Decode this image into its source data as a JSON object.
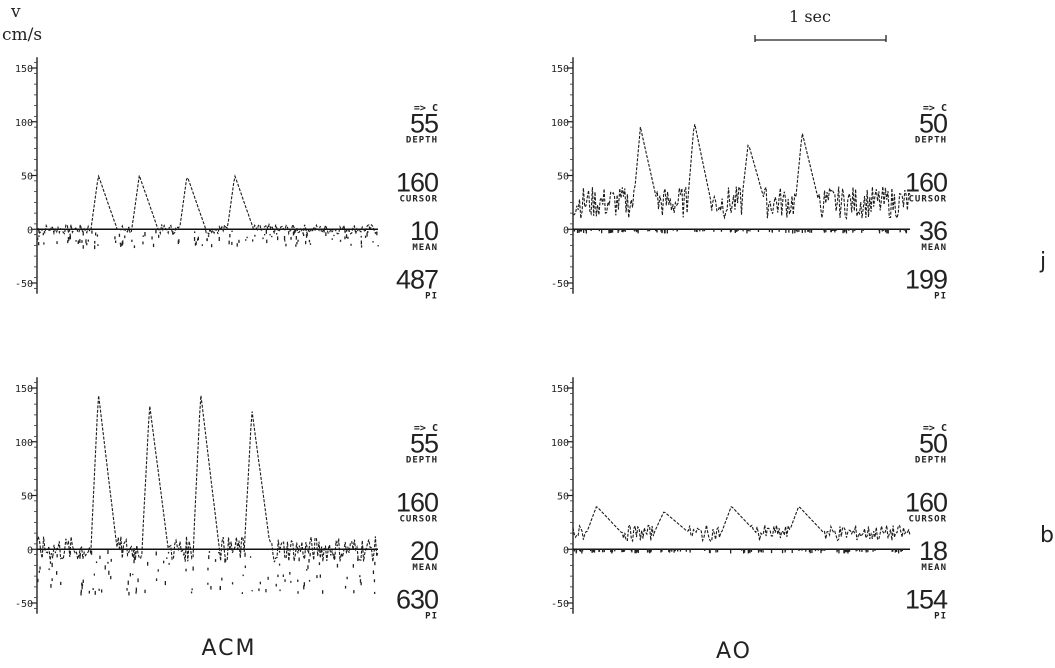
{
  "figure": {
    "y_unit_symbol": "v",
    "y_unit": "cm/s",
    "scale_bar_label": "1 sec",
    "column_labels": [
      "ACM",
      "AO"
    ],
    "row_labels": [
      "j",
      "b"
    ]
  },
  "chart_data": [
    {
      "type": "line",
      "panel": "top-left",
      "column": "ACM",
      "row": "j",
      "yticks": [
        150,
        100,
        50,
        0,
        -50
      ],
      "ylim": [
        -60,
        160
      ],
      "grid": false,
      "readout": {
        "arrow": "=> C",
        "depth": "55",
        "depth_label": "DEPTH",
        "cursor": "160",
        "cursor_label": "CURSOR",
        "mean": "10",
        "mean_label": "MEAN",
        "pi": "487",
        "pi_label": "PI"
      },
      "waveform": {
        "peak_times": [
          0.18,
          0.3,
          0.44,
          0.58
        ],
        "peak_values": [
          50,
          50,
          50,
          50
        ],
        "baseline": 0,
        "noise_min": -15,
        "noise_max": 0,
        "peak_width": 0.022
      }
    },
    {
      "type": "line",
      "panel": "top-right",
      "column": "AO",
      "row": "j",
      "yticks": [
        150,
        100,
        50,
        0,
        -50
      ],
      "ylim": [
        -60,
        160
      ],
      "grid": false,
      "readout": {
        "arrow": "=> C",
        "depth": "50",
        "depth_label": "DEPTH",
        "cursor": "160",
        "cursor_label": "CURSOR",
        "mean": "36",
        "mean_label": "MEAN",
        "pi": "199",
        "pi_label": "PI"
      },
      "waveform": {
        "peak_times": [
          0.2,
          0.36,
          0.52,
          0.68
        ],
        "peak_values": [
          95,
          100,
          80,
          90
        ],
        "baseline": 25,
        "noise_min": 0,
        "noise_max": 50,
        "peak_width": 0.02
      }
    },
    {
      "type": "line",
      "panel": "bottom-left",
      "column": "ACM",
      "row": "b",
      "yticks": [
        150,
        100,
        50,
        0,
        -50
      ],
      "ylim": [
        -60,
        160
      ],
      "grid": false,
      "readout": {
        "arrow": "=> C",
        "depth": "55",
        "depth_label": "DEPTH",
        "cursor": "160",
        "cursor_label": "CURSOR",
        "mean": "20",
        "mean_label": "MEAN",
        "pi": "630",
        "pi_label": "PI"
      },
      "waveform": {
        "peak_times": [
          0.18,
          0.33,
          0.48,
          0.63
        ],
        "peak_values": [
          145,
          135,
          145,
          130
        ],
        "baseline": 0,
        "noise_min": -40,
        "noise_max": 0,
        "peak_width": 0.022
      }
    },
    {
      "type": "line",
      "panel": "bottom-right",
      "column": "AO",
      "row": "b",
      "yticks": [
        150,
        100,
        50,
        0,
        -50
      ],
      "ylim": [
        -60,
        160
      ],
      "grid": false,
      "readout": {
        "arrow": "=> C",
        "depth": "50",
        "depth_label": "DEPTH",
        "cursor": "160",
        "cursor_label": "CURSOR",
        "mean": "18",
        "mean_label": "MEAN",
        "pi": "154",
        "pi_label": "PI"
      },
      "waveform": {
        "peak_times": [
          0.07,
          0.27,
          0.47,
          0.67
        ],
        "peak_values": [
          40,
          35,
          40,
          40
        ],
        "baseline": 15,
        "noise_min": 0,
        "noise_max": 25,
        "peak_width": 0.03
      }
    }
  ]
}
